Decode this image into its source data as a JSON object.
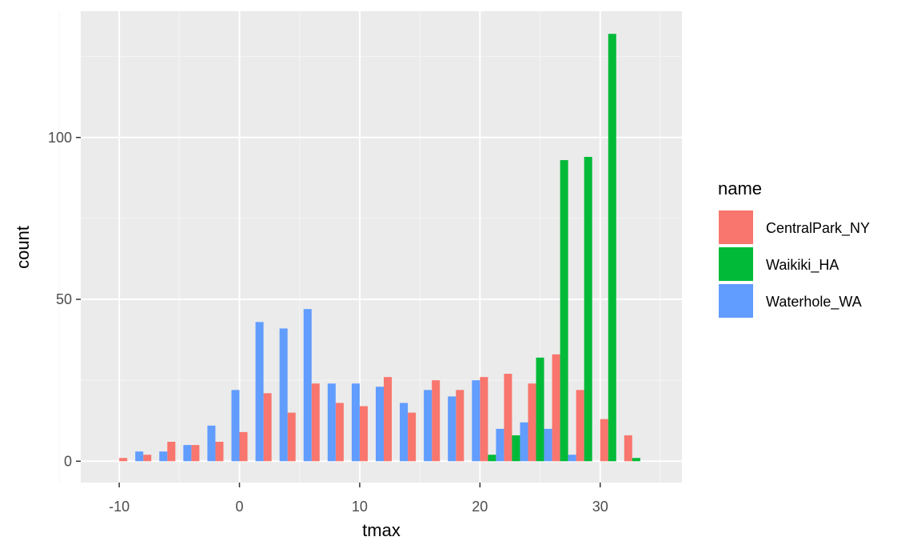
{
  "chart_data": {
    "type": "bar",
    "xlabel": "tmax",
    "ylabel": "count",
    "xlim": [
      -13.2,
      36.8
    ],
    "ylim": [
      -6.6,
      139
    ],
    "x_ticks": [
      -10,
      0,
      10,
      20,
      30
    ],
    "x_tick_labels": [
      "-10",
      "0",
      "10",
      "20",
      "30"
    ],
    "y_ticks": [
      0,
      50,
      100
    ],
    "y_tick_labels": [
      "0",
      "50",
      "100"
    ],
    "bin_centers": [
      -9,
      -7,
      -5,
      -3,
      -1,
      1,
      3,
      5,
      7,
      9,
      11,
      13,
      15,
      17,
      19,
      21,
      23,
      25,
      27,
      29,
      31,
      33
    ],
    "grid": true,
    "legend": {
      "title": "name",
      "position": "right"
    },
    "series": [
      {
        "name": "CentralPark_NY",
        "color": "#F8766D",
        "values": [
          1,
          2,
          6,
          5,
          6,
          9,
          21,
          15,
          24,
          18,
          17,
          26,
          15,
          25,
          22,
          26,
          27,
          24,
          33,
          22,
          13,
          8
        ]
      },
      {
        "name": "Waikiki_HA",
        "color": "#00BA38",
        "values": [
          0,
          0,
          0,
          0,
          0,
          0,
          0,
          0,
          0,
          0,
          0,
          0,
          0,
          0,
          0,
          2,
          8,
          32,
          93,
          94,
          132,
          1
        ]
      },
      {
        "name": "Waterhole_WA",
        "color": "#619CFF",
        "values": [
          3,
          3,
          5,
          11,
          22,
          43,
          41,
          47,
          24,
          24,
          23,
          18,
          22,
          20,
          25,
          10,
          12,
          10,
          2,
          0,
          0,
          0
        ]
      }
    ]
  }
}
